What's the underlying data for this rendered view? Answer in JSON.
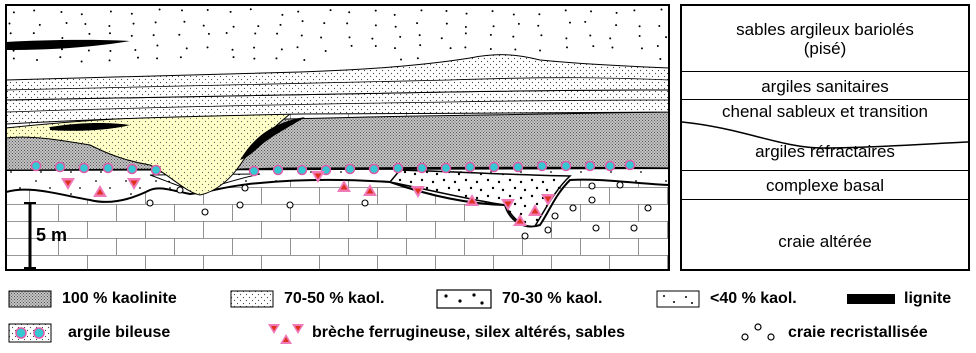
{
  "section": {
    "scale_label": "5 m"
  },
  "column": {
    "layers": [
      {
        "label": "sables argileux bariolés\n(pisé)"
      },
      {
        "label": "argiles sanitaires"
      },
      {
        "label": "chenal sableux et transition"
      },
      {
        "label": "argiles réfractaires"
      },
      {
        "label": "complexe basal"
      },
      {
        "label": "craie altérée"
      }
    ]
  },
  "legend": {
    "row1": [
      {
        "key": "kaolinite-100",
        "label": "100 % kaolinite",
        "swatch": "dense-dots"
      },
      {
        "key": "kaol-70-50",
        "label": "70-50 % kaol.",
        "swatch": "fine-dots"
      },
      {
        "key": "kaol-70-30",
        "label": "70-30 % kaol.",
        "swatch": "sparse-dots"
      },
      {
        "key": "kaol-40",
        "label": "<40 % kaol.",
        "swatch": "very-sparse-dots"
      },
      {
        "key": "lignite",
        "label": "lignite",
        "swatch": "black-lens"
      }
    ],
    "row2": [
      {
        "key": "argile-bileuse",
        "label": "argile bileuse",
        "swatch": "cyan-circles"
      },
      {
        "key": "breche",
        "label": "brèche ferrugineuse, silex altérés, sables",
        "swatch": "pink-triangles"
      },
      {
        "key": "craie-recristallisee",
        "label": "craie recristallisée",
        "swatch": "open-circles"
      }
    ]
  },
  "colors": {
    "kaolinite": "#b8b8b8",
    "yellow_fill": "#ffffc8",
    "cyan": "#33c8d2",
    "pink": "#f07ab8",
    "triangle_inner": "#e0301e",
    "black": "#000000"
  }
}
